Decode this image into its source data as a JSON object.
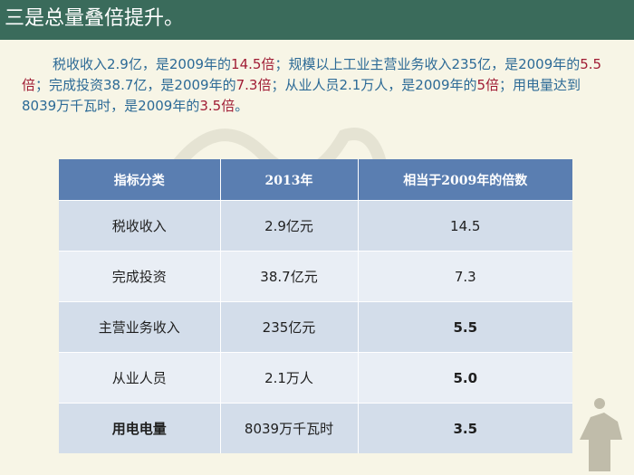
{
  "title": "三是总量叠倍提升。",
  "paragraph": {
    "p1": "税收收入2.9亿，是2009年的",
    "h1": "14.5倍",
    "p2": "；规模以上工业主营业务收入235亿，是2009年的",
    "h2": "5.5倍",
    "p3": "；完成投资38.7亿，是2009年的",
    "h3": "7.3倍",
    "p4": "；从业人员2.1万人，是2009年的",
    "h4": "5倍",
    "p5": "；用电量达到8039万千瓦时，是2009年的",
    "h5": "3.5倍",
    "p6": "。"
  },
  "table": {
    "headers": [
      "指标分类",
      "2013年",
      "相当于2009年的倍数"
    ],
    "rows": [
      {
        "category": "税收收入",
        "value_2013": "2.9亿元",
        "multiple": "14.5"
      },
      {
        "category": "完成投资",
        "value_2013": "38.7亿元",
        "multiple": "7.3"
      },
      {
        "category": "主营业务收入",
        "value_2013": "235亿元",
        "multiple": "5.5"
      },
      {
        "category": "从业人员",
        "value_2013": "2.1万人",
        "multiple": "5.0"
      },
      {
        "category": "用电电量",
        "value_2013": "8039万千瓦时",
        "multiple": "3.5"
      }
    ]
  },
  "colors": {
    "title_bar": "#3a6b5b",
    "paragraph_text": "#2c6a96",
    "highlight": "#a01c34",
    "table_header": "#5a7eb1"
  }
}
